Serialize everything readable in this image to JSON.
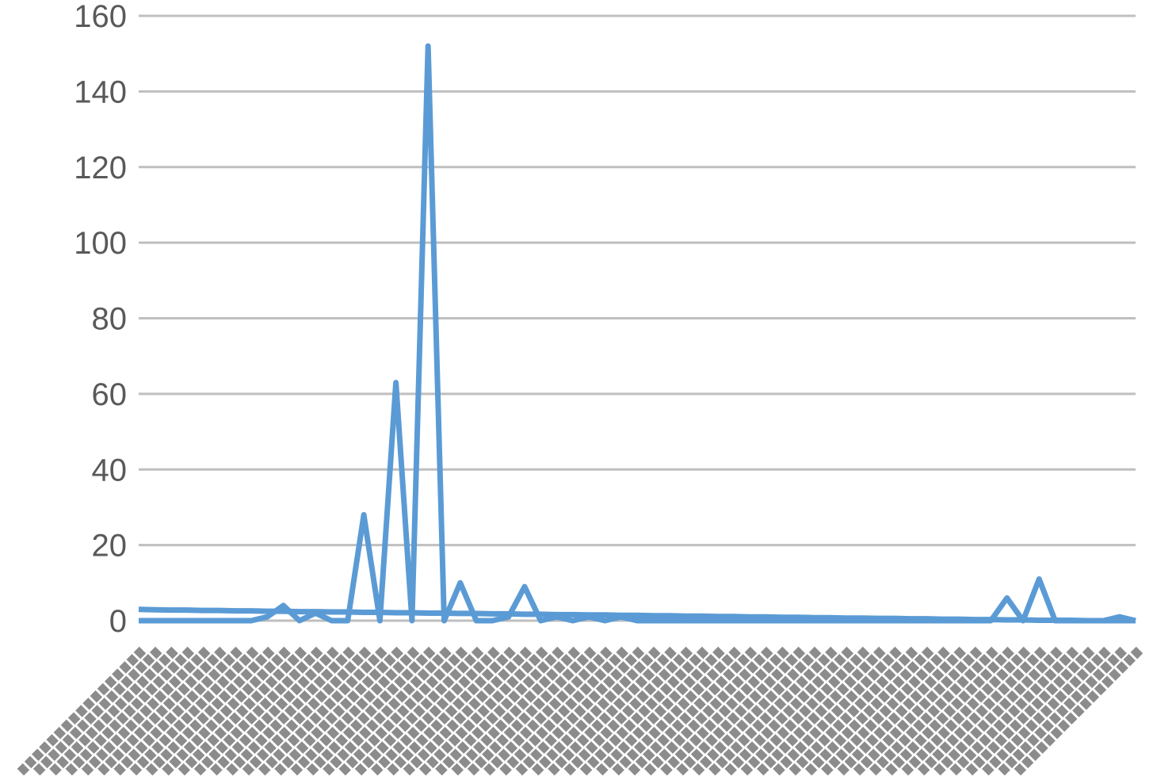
{
  "chart_data": {
    "type": "line",
    "title": "",
    "xlabel": "",
    "ylabel": "",
    "ylim": [
      0,
      160
    ],
    "yticks": [
      0,
      20,
      40,
      60,
      80,
      100,
      120,
      140,
      160
    ],
    "ytick_labels": [
      "0",
      "20",
      "40",
      "60",
      "80",
      "100",
      "120",
      "140",
      "160"
    ],
    "grid": true,
    "legend": "none",
    "series_color": "#5b9bd5",
    "gridline_color": "#bfbfbf",
    "x_categories_note": "Category labels are rotated and overlapping, unreadable",
    "x_category_count": 63,
    "series": [
      {
        "values": [
          0,
          0,
          0,
          0,
          0,
          0,
          0,
          0,
          1,
          4,
          0,
          2,
          0,
          0,
          28,
          0,
          63,
          0,
          152,
          0,
          10,
          0,
          0,
          1,
          9,
          0,
          1,
          0,
          1,
          0,
          1,
          0,
          0,
          0,
          0,
          0,
          0,
          0,
          0,
          0,
          0,
          0,
          0,
          0,
          0,
          0,
          0,
          0,
          0,
          0,
          0,
          0,
          0,
          0,
          6,
          0,
          11,
          0,
          0,
          0,
          0,
          1,
          0
        ]
      },
      {
        "values": [
          3,
          2.9,
          2.8,
          2.8,
          2.7,
          2.7,
          2.6,
          2.6,
          2.5,
          2.5,
          2.4,
          2.4,
          2.3,
          2.3,
          2.2,
          2.2,
          2.1,
          2.1,
          2.0,
          2.0,
          1.9,
          1.9,
          1.8,
          1.8,
          1.7,
          1.7,
          1.6,
          1.6,
          1.5,
          1.5,
          1.4,
          1.4,
          1.3,
          1.3,
          1.2,
          1.2,
          1.1,
          1.1,
          1.0,
          1.0,
          0.9,
          0.9,
          0.8,
          0.8,
          0.7,
          0.7,
          0.6,
          0.6,
          0.5,
          0.5,
          0.4,
          0.4,
          0.3,
          0.3,
          0.2,
          0.2,
          0.1,
          0.1,
          0.1,
          0,
          0,
          0,
          0
        ]
      }
    ]
  }
}
